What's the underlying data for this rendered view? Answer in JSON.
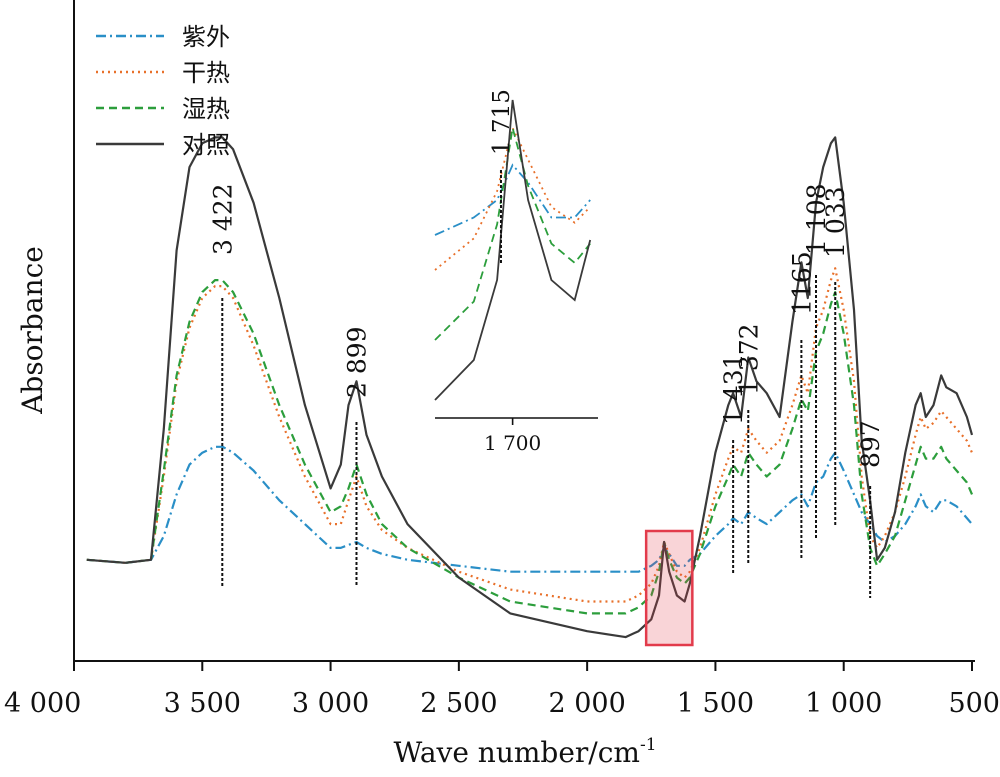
{
  "chart_data": {
    "type": "line",
    "xlabel": "Wave number/cm",
    "xlabel_sup": "-1",
    "ylabel": "Absorbance",
    "xlim": [
      4000,
      500
    ],
    "ylim": [
      0,
      1
    ],
    "x_reversed": true,
    "y_ticks": false,
    "x_ticks": [
      {
        "value": 4000,
        "label": "4 000"
      },
      {
        "value": 3500,
        "label": "3 500"
      },
      {
        "value": 3000,
        "label": "3 000"
      },
      {
        "value": 2500,
        "label": "2 500"
      },
      {
        "value": 2000,
        "label": "2 000"
      },
      {
        "value": 1500,
        "label": "1 500"
      },
      {
        "value": 1000,
        "label": "1 000"
      },
      {
        "value": 500,
        "label": "500"
      }
    ],
    "legend": {
      "position": "top-left"
    },
    "series": [
      {
        "name": "紫外",
        "color": "#2a8fc7",
        "style": "dashdot",
        "x": [
          3950,
          3800,
          3700,
          3650,
          3600,
          3550,
          3500,
          3450,
          3420,
          3380,
          3300,
          3200,
          3100,
          3000,
          2960,
          2930,
          2899,
          2860,
          2800,
          2700,
          2500,
          2300,
          2000,
          1850,
          1800,
          1750,
          1720,
          1700,
          1680,
          1650,
          1620,
          1600,
          1560,
          1500,
          1450,
          1431,
          1400,
          1372,
          1340,
          1300,
          1250,
          1200,
          1165,
          1140,
          1108,
          1080,
          1050,
          1033,
          1000,
          960,
          930,
          897,
          870,
          840,
          800,
          760,
          720,
          700,
          680,
          650,
          620,
          600,
          560,
          520,
          500
        ],
        "y": [
          0.16,
          0.155,
          0.16,
          0.2,
          0.27,
          0.32,
          0.34,
          0.35,
          0.35,
          0.34,
          0.31,
          0.26,
          0.22,
          0.18,
          0.18,
          0.185,
          0.19,
          0.18,
          0.17,
          0.16,
          0.15,
          0.14,
          0.14,
          0.14,
          0.14,
          0.15,
          0.16,
          0.18,
          0.17,
          0.15,
          0.15,
          0.16,
          0.17,
          0.2,
          0.22,
          0.23,
          0.22,
          0.24,
          0.23,
          0.22,
          0.24,
          0.26,
          0.27,
          0.25,
          0.29,
          0.3,
          0.33,
          0.34,
          0.31,
          0.27,
          0.24,
          0.22,
          0.2,
          0.19,
          0.2,
          0.22,
          0.25,
          0.27,
          0.25,
          0.24,
          0.26,
          0.26,
          0.25,
          0.23,
          0.22
        ]
      },
      {
        "name": "干热",
        "color": "#e8702a",
        "style": "dotted",
        "x": [
          3950,
          3800,
          3700,
          3650,
          3600,
          3550,
          3500,
          3450,
          3422,
          3380,
          3300,
          3200,
          3100,
          3000,
          2960,
          2930,
          2899,
          2860,
          2800,
          2700,
          2500,
          2300,
          2000,
          1850,
          1800,
          1750,
          1720,
          1700,
          1680,
          1650,
          1620,
          1600,
          1560,
          1500,
          1450,
          1431,
          1400,
          1372,
          1340,
          1300,
          1250,
          1200,
          1165,
          1140,
          1108,
          1080,
          1050,
          1033,
          1000,
          960,
          930,
          897,
          870,
          840,
          800,
          760,
          720,
          700,
          680,
          650,
          620,
          600,
          560,
          520,
          500
        ],
        "y": [
          0.16,
          0.155,
          0.16,
          0.3,
          0.46,
          0.55,
          0.6,
          0.62,
          0.62,
          0.6,
          0.52,
          0.4,
          0.3,
          0.22,
          0.22,
          0.26,
          0.3,
          0.25,
          0.21,
          0.18,
          0.14,
          0.11,
          0.09,
          0.09,
          0.1,
          0.12,
          0.15,
          0.19,
          0.17,
          0.14,
          0.13,
          0.14,
          0.18,
          0.27,
          0.33,
          0.35,
          0.34,
          0.38,
          0.36,
          0.34,
          0.36,
          0.42,
          0.47,
          0.44,
          0.55,
          0.58,
          0.63,
          0.65,
          0.58,
          0.46,
          0.3,
          0.2,
          0.18,
          0.2,
          0.24,
          0.3,
          0.37,
          0.4,
          0.38,
          0.39,
          0.41,
          0.4,
          0.38,
          0.36,
          0.34
        ]
      },
      {
        "name": "湿热",
        "color": "#2c9e3c",
        "style": "dashed",
        "x": [
          3950,
          3800,
          3700,
          3650,
          3600,
          3550,
          3500,
          3450,
          3422,
          3380,
          3300,
          3200,
          3100,
          3000,
          2960,
          2930,
          2899,
          2860,
          2800,
          2700,
          2500,
          2300,
          2000,
          1850,
          1800,
          1750,
          1720,
          1700,
          1680,
          1650,
          1620,
          1600,
          1560,
          1500,
          1450,
          1431,
          1400,
          1372,
          1340,
          1300,
          1250,
          1200,
          1165,
          1140,
          1108,
          1080,
          1050,
          1033,
          1000,
          960,
          930,
          897,
          870,
          840,
          800,
          760,
          720,
          700,
          680,
          650,
          620,
          600,
          560,
          520,
          500
        ],
        "y": [
          0.16,
          0.155,
          0.16,
          0.31,
          0.47,
          0.56,
          0.61,
          0.63,
          0.63,
          0.61,
          0.54,
          0.42,
          0.32,
          0.24,
          0.25,
          0.28,
          0.32,
          0.27,
          0.22,
          0.18,
          0.13,
          0.09,
          0.07,
          0.07,
          0.08,
          0.1,
          0.14,
          0.19,
          0.16,
          0.13,
          0.12,
          0.13,
          0.17,
          0.25,
          0.3,
          0.32,
          0.3,
          0.34,
          0.32,
          0.3,
          0.32,
          0.38,
          0.43,
          0.41,
          0.51,
          0.54,
          0.59,
          0.61,
          0.54,
          0.42,
          0.27,
          0.18,
          0.15,
          0.17,
          0.2,
          0.26,
          0.32,
          0.35,
          0.33,
          0.33,
          0.35,
          0.33,
          0.31,
          0.29,
          0.27
        ]
      },
      {
        "name": "对照",
        "color": "#3a3a3a",
        "style": "solid",
        "x": [
          3950,
          3800,
          3700,
          3650,
          3600,
          3550,
          3500,
          3450,
          3422,
          3380,
          3300,
          3200,
          3100,
          3000,
          2960,
          2930,
          2899,
          2860,
          2800,
          2700,
          2500,
          2300,
          2000,
          1850,
          1800,
          1750,
          1720,
          1700,
          1680,
          1650,
          1620,
          1600,
          1560,
          1500,
          1450,
          1431,
          1400,
          1372,
          1340,
          1300,
          1250,
          1200,
          1165,
          1140,
          1108,
          1080,
          1050,
          1033,
          1000,
          960,
          930,
          897,
          870,
          840,
          800,
          760,
          720,
          700,
          680,
          650,
          620,
          600,
          560,
          520,
          500
        ],
        "y": [
          0.16,
          0.155,
          0.16,
          0.38,
          0.68,
          0.82,
          0.86,
          0.87,
          0.87,
          0.85,
          0.76,
          0.6,
          0.42,
          0.28,
          0.32,
          0.42,
          0.46,
          0.37,
          0.3,
          0.22,
          0.13,
          0.07,
          0.04,
          0.03,
          0.04,
          0.06,
          0.1,
          0.19,
          0.14,
          0.1,
          0.09,
          0.12,
          0.2,
          0.34,
          0.42,
          0.44,
          0.4,
          0.5,
          0.46,
          0.44,
          0.4,
          0.56,
          0.66,
          0.6,
          0.76,
          0.82,
          0.86,
          0.87,
          0.76,
          0.58,
          0.36,
          0.26,
          0.16,
          0.18,
          0.24,
          0.34,
          0.42,
          0.44,
          0.4,
          0.42,
          0.47,
          0.45,
          0.44,
          0.4,
          0.37
        ]
      }
    ],
    "peak_annotations": [
      {
        "x": 3422,
        "label": "3 422"
      },
      {
        "x": 2899,
        "label": "2 899"
      },
      {
        "x": 1431,
        "label": "1 431"
      },
      {
        "x": 1372,
        "label": "1 372"
      },
      {
        "x": 1165,
        "label": "1165"
      },
      {
        "x": 1108,
        "label": "1 108"
      },
      {
        "x": 1033,
        "label": "1 033"
      },
      {
        "x": 897,
        "label": "897"
      }
    ],
    "highlight_region": {
      "x": [
        1770,
        1590
      ],
      "color": "#e23b4b"
    },
    "inset": {
      "xlim": [
        1800,
        1590
      ],
      "x_ticks": [
        {
          "value": 1700,
          "label": "1 700"
        }
      ],
      "annotation": {
        "x": 1715,
        "label": "1 715"
      }
    }
  }
}
